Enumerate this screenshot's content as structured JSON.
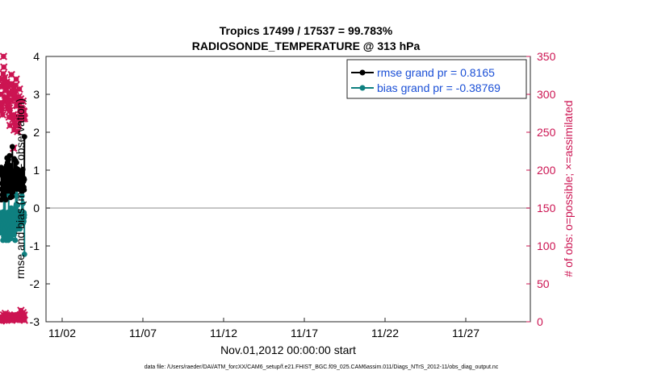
{
  "chart_data": {
    "type": "line",
    "title": "Tropics 17499 / 17537 = 99.783%",
    "subtitle": "RADIOSONDE_TEMPERATURE @ 313 hPa",
    "xlabel": "Nov.01,2012 00:00:00 start",
    "ylabel_left": "rmse and bias (model - observation)",
    "ylabel_right": "# of obs: o=possible; ×=assimilated",
    "footnote": "data file: /Users/raeder/DAI/ATM_forcXX/CAM6_setup/f.e21.FHIST_BGC.f09_025.CAM6assim.011/Diags_NTrS_2012-11/obs_diag_output.nc",
    "xlim": [
      0.5,
      30.5
    ],
    "ylim_left": [
      -3,
      4
    ],
    "ylim_right": [
      0,
      350
    ],
    "x_ticks": [
      {
        "day": 1.5,
        "label": "11/02"
      },
      {
        "day": 6.5,
        "label": "11/07"
      },
      {
        "day": 11.5,
        "label": "11/12"
      },
      {
        "day": 16.5,
        "label": "11/17"
      },
      {
        "day": 21.5,
        "label": "11/22"
      },
      {
        "day": 26.5,
        "label": "11/27"
      }
    ],
    "y_ticks_left": [
      "4",
      "3",
      "2",
      "1",
      "0",
      "-1",
      "-2",
      "-3"
    ],
    "y_ticks_right": [
      "350",
      "300",
      "250",
      "200",
      "150",
      "100",
      "50",
      "0"
    ],
    "series": [
      {
        "name": "rmse grand pr = 0.8165",
        "axis": "left",
        "color": "#000000",
        "values": [
          0.95,
          1.0,
          1.05,
          1.02,
          1.07,
          0.22,
          0.95,
          0.5,
          0.92,
          0.65,
          0.9,
          0.35,
          0.85,
          0.95,
          1.0,
          0.82,
          0.6,
          0.92,
          0.88,
          0.4,
          1.0,
          0.78,
          0.5,
          0.95,
          0.72,
          0.9,
          0.25,
          0.82,
          0.78,
          0.85,
          0.55,
          1.05,
          0.22,
          0.95,
          0.45,
          0.92,
          1.12,
          0.9,
          0.68,
          1.32,
          0.95,
          0.68,
          1.2,
          0.88,
          1.05,
          0.45,
          1.0,
          0.78,
          1.28,
          0.95,
          0.55,
          1.1,
          0.8,
          1.05,
          1.38,
          0.9,
          0.62,
          0.45,
          1.12,
          0.82,
          0.28,
          0.85,
          0.82,
          0.85,
          0.48,
          0.88,
          0.62,
          0.45,
          0.98,
          0.3,
          0.82,
          1.62,
          0.72,
          0.42,
          0.85,
          0.75,
          0.92,
          0.88,
          0.65,
          0.68,
          0.72,
          0.78,
          1.3,
          0.82,
          0.9,
          0.72,
          0.65,
          0.55,
          0.78,
          0.85,
          1.25,
          0.78,
          0.95,
          0.5,
          1.05,
          0.65,
          1.2,
          0.82,
          0.68,
          0.88,
          0.6,
          0.8,
          0.85,
          0.9,
          1.02,
          0.88,
          0.78,
          0.6,
          0.92,
          0.5,
          0.72,
          0.6,
          0.72,
          0.88,
          0.55,
          0.8,
          0.5,
          0.82,
          0.5,
          0.78,
          0.55,
          0.85,
          0.48,
          0.82,
          0.75,
          0.85,
          0.45,
          0.9,
          0.88,
          0.98,
          0.68,
          0.95,
          0.75,
          0.58,
          1.02,
          0.8,
          0.78,
          0.48,
          0.7,
          0.72,
          0.55,
          0.78,
          0.48,
          0.75,
          1.88
        ]
      },
      {
        "name": "bias grand pr = -0.38769",
        "axis": "left",
        "color": "#0f8080",
        "values": [
          -0.55,
          -0.65,
          -0.62,
          -0.6,
          -0.12,
          -0.45,
          -0.15,
          -0.35,
          -0.2,
          -0.48,
          -0.12,
          -0.55,
          -0.28,
          -0.6,
          -0.85,
          -0.45,
          -0.55,
          -0.25,
          -0.1,
          -0.75,
          0.32,
          -0.3,
          -0.12,
          -0.55,
          -0.15,
          -0.8,
          -0.2,
          0.3,
          -0.55,
          -0.25,
          -0.35,
          -0.7,
          -0.15,
          -0.45,
          -0.85,
          -0.3,
          -0.65,
          -0.2,
          -0.75,
          -0.5,
          -0.12,
          -0.6,
          -0.2,
          -0.4,
          -0.15,
          -0.65,
          -0.3,
          -0.85,
          -0.25,
          0.38,
          -0.55,
          -0.1,
          -0.6,
          -0.2,
          -0.45,
          -0.68,
          -0.28,
          -0.72,
          -0.55,
          -0.2,
          -0.7,
          -0.35,
          -0.15,
          -0.8,
          0.0,
          -0.5,
          -0.25,
          -0.1,
          -0.45,
          -0.18,
          -0.55,
          -0.12,
          -0.35,
          -0.08,
          -0.3,
          -0.6,
          -0.2,
          -0.05,
          -0.45,
          -0.25,
          -0.15,
          -0.35,
          -0.7,
          -0.18,
          -0.4,
          -0.25,
          -0.6,
          -0.45,
          -0.85,
          -0.5,
          -0.35,
          -0.15,
          0.35,
          0.05,
          0.32,
          0.1,
          -0.1,
          -0.35,
          -0.15,
          0.55,
          -0.25,
          -0.38,
          -0.15,
          0.08,
          -0.38,
          -0.55,
          -0.15,
          -0.35,
          -0.45,
          -0.25,
          -0.3,
          -0.12,
          -0.5,
          -0.25,
          -0.2,
          -0.35,
          -0.15,
          -0.55,
          -0.25,
          -0.3,
          -0.18,
          -0.4,
          -0.15,
          -0.3,
          -0.2,
          -0.38,
          -0.1,
          -0.3,
          -0.25,
          0.32,
          -0.18,
          -0.35,
          0.45,
          -0.1,
          -0.25,
          0.12,
          -0.4,
          -0.15,
          -0.2,
          -0.25,
          -0.35,
          -0.12,
          -0.25,
          -0.18,
          -1.22
        ]
      },
      {
        "name": "possible obs",
        "axis": "right",
        "color": "#cc1452",
        "values": [
          300,
          287,
          283,
          278,
          289,
          310,
          320,
          273,
          313,
          327,
          350,
          336,
          315,
          315,
          322,
          292,
          305,
          296,
          305,
          311,
          316,
          312,
          292,
          296,
          282,
          286,
          286,
          291,
          301,
          270,
          282,
          278,
          259,
          292,
          302,
          312,
          300,
          326,
          314,
          305,
          271,
          271,
          267,
          273,
          229,
          308,
          253,
          263,
          300,
          294,
          259,
          305,
          312,
          320,
          286,
          260,
          271,
          285,
          251,
          293,
          260,
          267,
          297,
          286,
          307,
          288,
          280,
          280,
          294,
          282,
          268,
          279,
          278,
          280,
          268,
          270,
          291,
          268,
          278,
          277,
          270,
          268
        ]
      },
      {
        "name": "assimilated obs",
        "axis": "right",
        "color": "#cc1452",
        "values": [
          299,
          287,
          283,
          278,
          289,
          310,
          320,
          273,
          313,
          327,
          350,
          336,
          315,
          315,
          322,
          292,
          305,
          296,
          305,
          311,
          316,
          312,
          292,
          296,
          282,
          286,
          286,
          291,
          301,
          270,
          282,
          278,
          259,
          292,
          302,
          312,
          300,
          326,
          314,
          305,
          271,
          271,
          267,
          273,
          229,
          308,
          253,
          263,
          300,
          294,
          259,
          305,
          312,
          320,
          286,
          260,
          271,
          285,
          251,
          293,
          260,
          267,
          297,
          286,
          307,
          288,
          280,
          280,
          294,
          282,
          268,
          279,
          278,
          280,
          268,
          270,
          291,
          268,
          278,
          277,
          270,
          268
        ]
      },
      {
        "name": "bottom obs row",
        "axis": "right",
        "color": "#cc1452",
        "values": [
          6,
          2,
          1,
          5,
          2,
          4,
          5,
          4,
          3,
          5,
          9,
          4,
          2,
          4,
          3,
          5,
          11,
          7,
          4,
          7,
          9,
          3,
          5,
          5,
          3,
          4,
          3,
          8,
          4,
          5,
          6,
          3,
          4,
          8,
          3,
          4,
          4,
          6,
          2,
          8,
          3,
          6,
          4,
          5,
          5,
          6,
          8,
          4,
          9,
          3,
          6,
          5,
          4,
          6,
          3,
          5,
          7,
          4,
          3,
          6,
          5,
          8,
          5,
          4,
          4,
          5,
          7,
          6,
          9,
          15,
          8,
          4,
          10,
          5,
          7,
          4,
          12,
          6,
          4,
          8,
          9,
          2
        ]
      }
    ],
    "legend": [
      {
        "label": "rmse grand pr = 0.8165",
        "color": "#000000"
      },
      {
        "label": "bias grand pr = -0.38769",
        "color": "#0f8080"
      }
    ],
    "legend_location": "top-right"
  },
  "colors": {
    "rmse": "#000000",
    "bias": "#0f8080",
    "obs": "#cc1452",
    "zero_line": "#b3b3b3",
    "legend_text": "#1a4fd6"
  }
}
